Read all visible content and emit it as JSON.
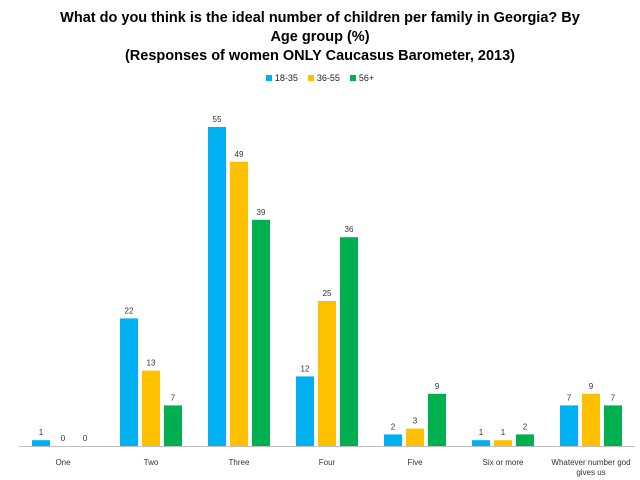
{
  "chart_data": {
    "type": "bar",
    "title_lines": [
      "What do you think is the ideal number of children per family in Georgia? By",
      "Age group (%)",
      "(Responses of women ONLY Caucasus Barometer, 2013)"
    ],
    "xlabel": "",
    "ylabel": "",
    "ylim": [
      0,
      55
    ],
    "grid": false,
    "legend_position": "top-center",
    "categories": [
      "One",
      "Two",
      "Three",
      "Four",
      "Five",
      "Six or more",
      "Whatever number god gives us"
    ],
    "category_label_lines": [
      [
        "One"
      ],
      [
        "Two"
      ],
      [
        "Three"
      ],
      [
        "Four"
      ],
      [
        "Five"
      ],
      [
        "Six or more"
      ],
      [
        "Whatever number god",
        "gives us"
      ]
    ],
    "series": [
      {
        "name": "18-35",
        "color": "#00b0f0",
        "values": [
          1,
          22,
          55,
          12,
          2,
          1,
          7
        ]
      },
      {
        "name": "36-55",
        "color": "#ffc000",
        "values": [
          0,
          13,
          49,
          25,
          3,
          1,
          9
        ]
      },
      {
        "name": "56+",
        "color": "#00b050",
        "values": [
          0,
          7,
          39,
          36,
          9,
          2,
          7
        ]
      }
    ]
  }
}
